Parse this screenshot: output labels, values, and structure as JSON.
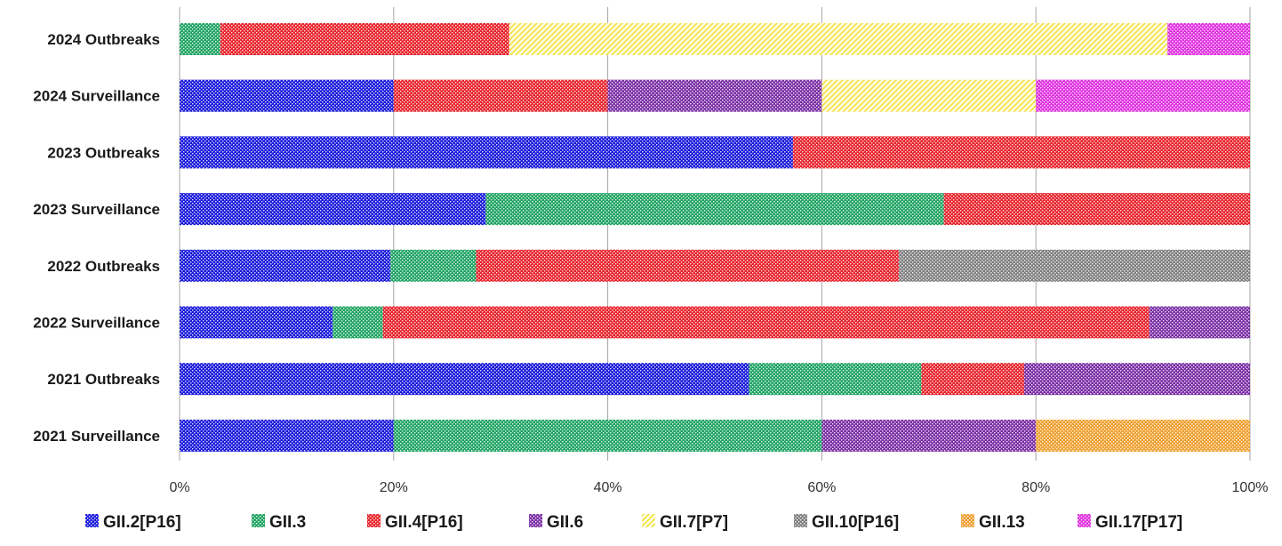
{
  "chart_data": {
    "type": "bar",
    "orientation": "horizontal",
    "stacked": true,
    "normalized": "percent",
    "title": "",
    "xlabel": "",
    "ylabel": "",
    "xlim": [
      0,
      100
    ],
    "x_ticks": [
      "0%",
      "20%",
      "40%",
      "60%",
      "80%",
      "100%"
    ],
    "grid": "vertical",
    "legend_position": "bottom",
    "categories": [
      "2024 Outbreaks",
      "2024 Surveillance",
      "2023 Outbreaks",
      "2023 Surveillance",
      "2022 Outbreaks",
      "2022 Surveillance",
      "2021 Outbreaks",
      "2021 Surveillance"
    ],
    "series": [
      {
        "name": "GII.2[P16]",
        "color": "#1a1adc",
        "values": [
          0,
          20,
          57.3,
          28.6,
          19.7,
          14.3,
          53.2,
          20
        ]
      },
      {
        "name": "GII.3",
        "color": "#1fa463",
        "values": [
          3.8,
          0,
          0,
          42.8,
          8.0,
          4.7,
          16.1,
          40
        ]
      },
      {
        "name": "GII.4[P16]",
        "color": "#e8232b",
        "values": [
          27.0,
          20,
          42.7,
          28.6,
          39.5,
          71.6,
          9.6,
          0
        ]
      },
      {
        "name": "GII.6",
        "color": "#7a2fa5",
        "values": [
          0,
          20,
          0,
          0,
          0,
          9.4,
          21.1,
          20
        ]
      },
      {
        "name": "GII.7[P7]",
        "color": "#f2e23a",
        "values": [
          61.5,
          20,
          0,
          0,
          0,
          0,
          0,
          0
        ]
      },
      {
        "name": "GII.10[P16]",
        "color": "#808080",
        "values": [
          0,
          0,
          0,
          0,
          32.8,
          0,
          0,
          0
        ]
      },
      {
        "name": "GII.13",
        "color": "#f0a030",
        "values": [
          0,
          0,
          0,
          0,
          0,
          0,
          0,
          20
        ]
      },
      {
        "name": "GII.17[P17]",
        "color": "#e030e0",
        "values": [
          7.7,
          20,
          0,
          0,
          0,
          0,
          0,
          0
        ]
      }
    ]
  }
}
